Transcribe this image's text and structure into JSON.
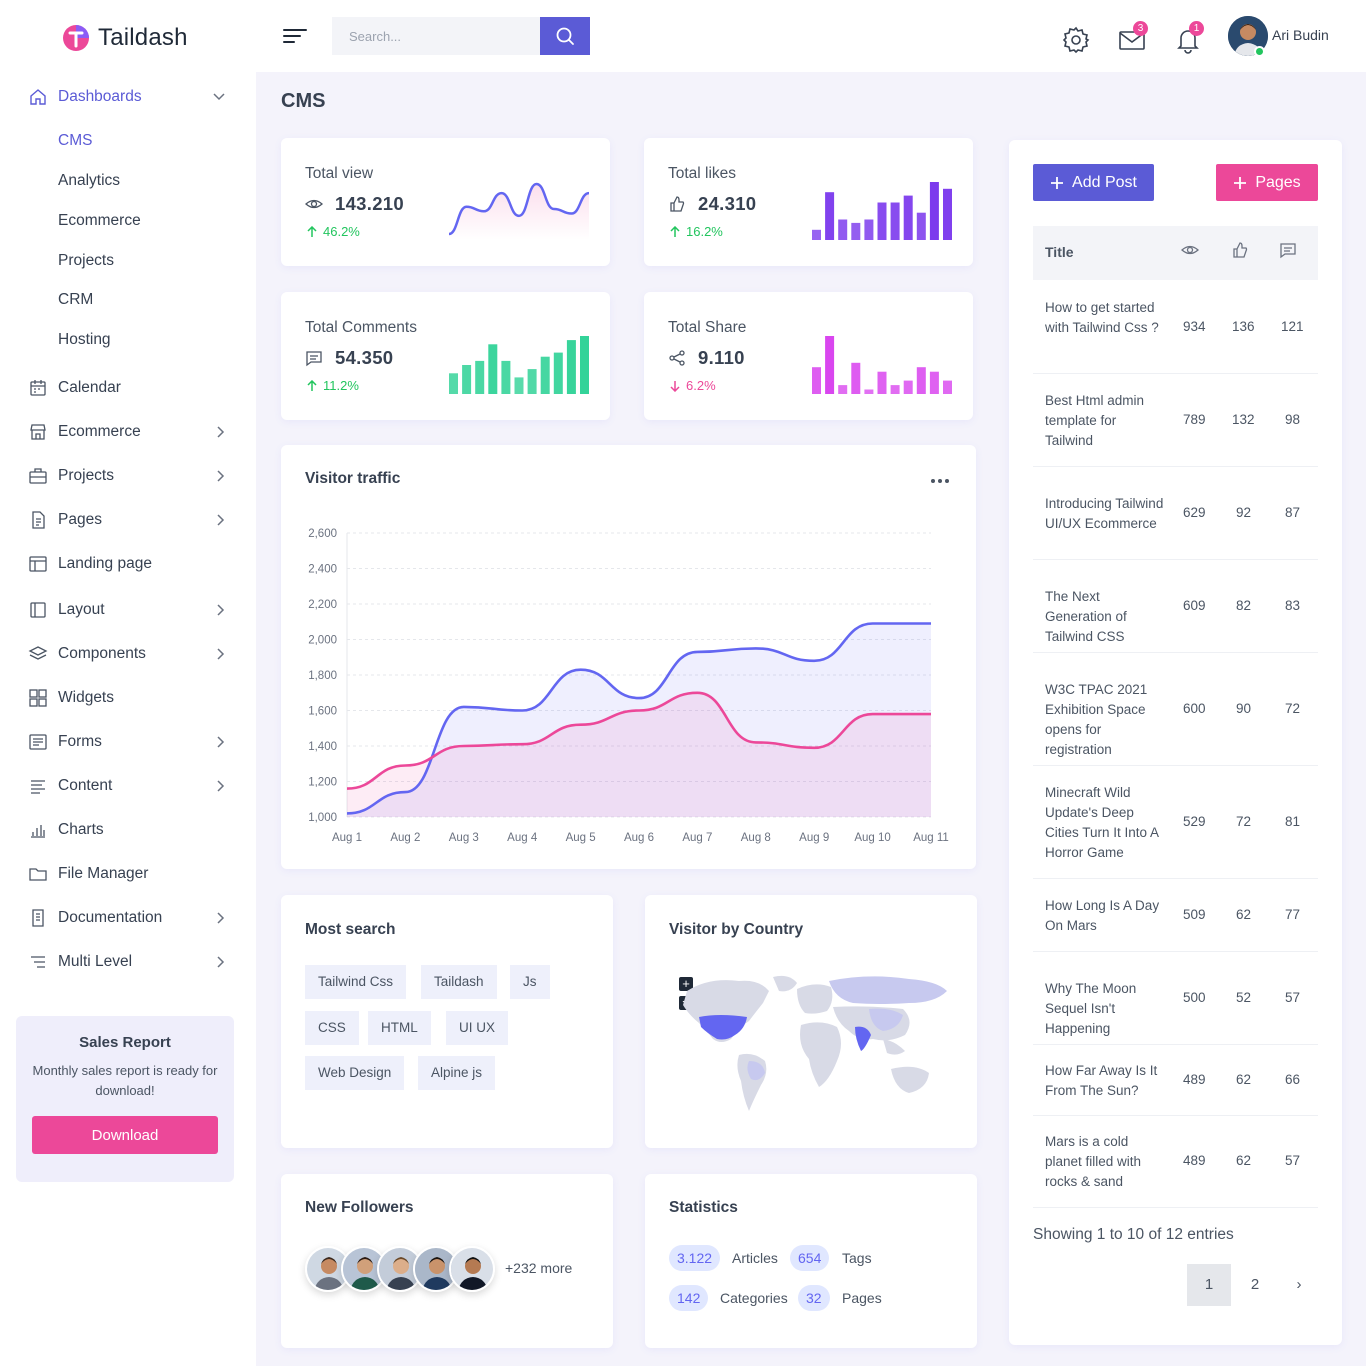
{
  "brand": {
    "name": "Taildash"
  },
  "header": {
    "search_placeholder": "Search...",
    "mail_badge": "3",
    "notification_badge": "1",
    "user_name": "Ari Budin"
  },
  "sidebar": {
    "dashboards": {
      "label": "Dashboards",
      "icon": "home-icon"
    },
    "dashboard_subitems": [
      "CMS",
      "Analytics",
      "Ecommerce",
      "Projects",
      "CRM",
      "Hosting"
    ],
    "items": [
      {
        "label": "Calendar",
        "icon": "calendar-icon",
        "has_children": false
      },
      {
        "label": "Ecommerce",
        "icon": "store-icon",
        "has_children": true
      },
      {
        "label": "Projects",
        "icon": "briefcase-icon",
        "has_children": true
      },
      {
        "label": "Pages",
        "icon": "file-icon",
        "has_children": true
      },
      {
        "label": "Landing page",
        "icon": "layout-template-icon",
        "has_children": false
      },
      {
        "label": "Layout",
        "icon": "layout-icon",
        "has_children": true
      },
      {
        "label": "Components",
        "icon": "layers-icon",
        "has_children": true
      },
      {
        "label": "Widgets",
        "icon": "widgets-icon",
        "has_children": false
      },
      {
        "label": "Forms",
        "icon": "form-icon",
        "has_children": true
      },
      {
        "label": "Content",
        "icon": "list-icon",
        "has_children": true
      },
      {
        "label": "Charts",
        "icon": "bar-chart-icon",
        "has_children": false
      },
      {
        "label": "File Manager",
        "icon": "folder-icon",
        "has_children": false
      },
      {
        "label": "Documentation",
        "icon": "document-icon",
        "has_children": true
      },
      {
        "label": "Multi Level",
        "icon": "multilevel-icon",
        "has_children": true
      }
    ],
    "sales_report": {
      "title": "Sales Report",
      "description": "Monthly sales report is ready for download!",
      "button": "Download"
    }
  },
  "main": {
    "page_title": "CMS",
    "stats": [
      {
        "label": "Total view",
        "value": "143.210",
        "change": "46.2%",
        "direction": "up",
        "icon": "eye-icon",
        "color": "#6366f1"
      },
      {
        "label": "Total likes",
        "value": "24.310",
        "change": "16.2%",
        "direction": "up",
        "icon": "thumb-up-icon",
        "color": "#7c3aed"
      },
      {
        "label": "Total Comments",
        "value": "54.350",
        "change": "11.2%",
        "direction": "up",
        "icon": "comment-icon",
        "color": "#34d399"
      },
      {
        "label": "Total Share",
        "value": "9.110",
        "change": "6.2%",
        "direction": "down",
        "icon": "share-icon",
        "color": "#d946ef"
      }
    ],
    "visitor_traffic": {
      "title": "Visitor traffic"
    },
    "most_search": {
      "title": "Most search",
      "tags": [
        "Tailwind Css",
        "Taildash",
        "Js",
        "CSS",
        "HTML",
        "UI UX",
        "Web Design",
        "Alpine js"
      ]
    },
    "visitor_country": {
      "title": "Visitor by Country"
    },
    "new_followers": {
      "title": "New Followers",
      "more": "+232 more"
    },
    "statistics": {
      "title": "Statistics",
      "items": [
        {
          "value": "3.122",
          "label": "Articles"
        },
        {
          "value": "654",
          "label": "Tags"
        },
        {
          "value": "142",
          "label": "Categories"
        },
        {
          "value": "32",
          "label": "Pages"
        }
      ]
    }
  },
  "chart_data": [
    {
      "type": "area",
      "title": "Visitor traffic",
      "categories": [
        "Aug 1",
        "Aug 2",
        "Aug 3",
        "Aug 4",
        "Aug 5",
        "Aug 6",
        "Aug 7",
        "Aug 8",
        "Aug 9",
        "Aug 10",
        "Aug 11"
      ],
      "ylim": [
        1000,
        2600
      ],
      "yticks": [
        1000,
        1200,
        1400,
        1600,
        1800,
        2000,
        2200,
        2400,
        2600
      ],
      "grid": true,
      "series": [
        {
          "color": "#6366f1",
          "values": [
            1020,
            1140,
            1620,
            1600,
            1830,
            1670,
            1930,
            1950,
            1880,
            2090,
            2090
          ]
        },
        {
          "color": "#ec4899",
          "values": [
            1160,
            1290,
            1400,
            1410,
            1520,
            1600,
            1700,
            1420,
            1390,
            1580,
            1580
          ]
        }
      ]
    },
    {
      "type": "line",
      "title": "Total view",
      "values": [
        0,
        12,
        10,
        18,
        8,
        22,
        11,
        9,
        18
      ],
      "color": "#6366f1"
    },
    {
      "type": "bar",
      "title": "Total likes",
      "values": [
        3,
        14,
        6,
        5,
        6,
        11,
        11,
        13,
        8,
        17,
        15
      ],
      "color": "#7c3aed"
    },
    {
      "type": "bar",
      "title": "Total Comments",
      "values": [
        5,
        7,
        8,
        12,
        8,
        4,
        6,
        9,
        10,
        13,
        14
      ],
      "color": "#34d399"
    },
    {
      "type": "bar",
      "title": "Total Share",
      "values": [
        6,
        13,
        2,
        7,
        1,
        5,
        2,
        3,
        6,
        5,
        3
      ],
      "color": "#d946ef"
    }
  ],
  "posts": {
    "add_post_label": "Add Post",
    "pages_label": "Pages",
    "table_header": "Title",
    "rows": [
      {
        "title": "How to get started with Tailwind Css ?",
        "views": "934",
        "likes": "136",
        "comments": "121"
      },
      {
        "title": "Best Html admin template for Tailwind",
        "views": "789",
        "likes": "132",
        "comments": "98"
      },
      {
        "title": "Introducing Tailwind UI/UX Ecommerce",
        "views": "629",
        "likes": "92",
        "comments": "87"
      },
      {
        "title": "The Next Generation of Tailwind CSS",
        "views": "609",
        "likes": "82",
        "comments": "83"
      },
      {
        "title": "W3C TPAC 2021 Exhibition Space opens for registration",
        "views": "600",
        "likes": "90",
        "comments": "72"
      },
      {
        "title": "Minecraft Wild Update's Deep Cities Turn It Into A Horror Game",
        "views": "529",
        "likes": "72",
        "comments": "81"
      },
      {
        "title": "How Long Is A Day On Mars",
        "views": "509",
        "likes": "62",
        "comments": "77"
      },
      {
        "title": "Why The Moon Sequel Isn't Happening",
        "views": "500",
        "likes": "52",
        "comments": "57"
      },
      {
        "title": "How Far Away Is It From The Sun?",
        "views": "489",
        "likes": "62",
        "comments": "66"
      },
      {
        "title": "Mars is a cold planet filled with rocks & sand",
        "views": "489",
        "likes": "62",
        "comments": "57"
      }
    ],
    "showing": "Showing 1 to 10 of 12 entries",
    "pagination": [
      "1",
      "2",
      "›"
    ]
  }
}
